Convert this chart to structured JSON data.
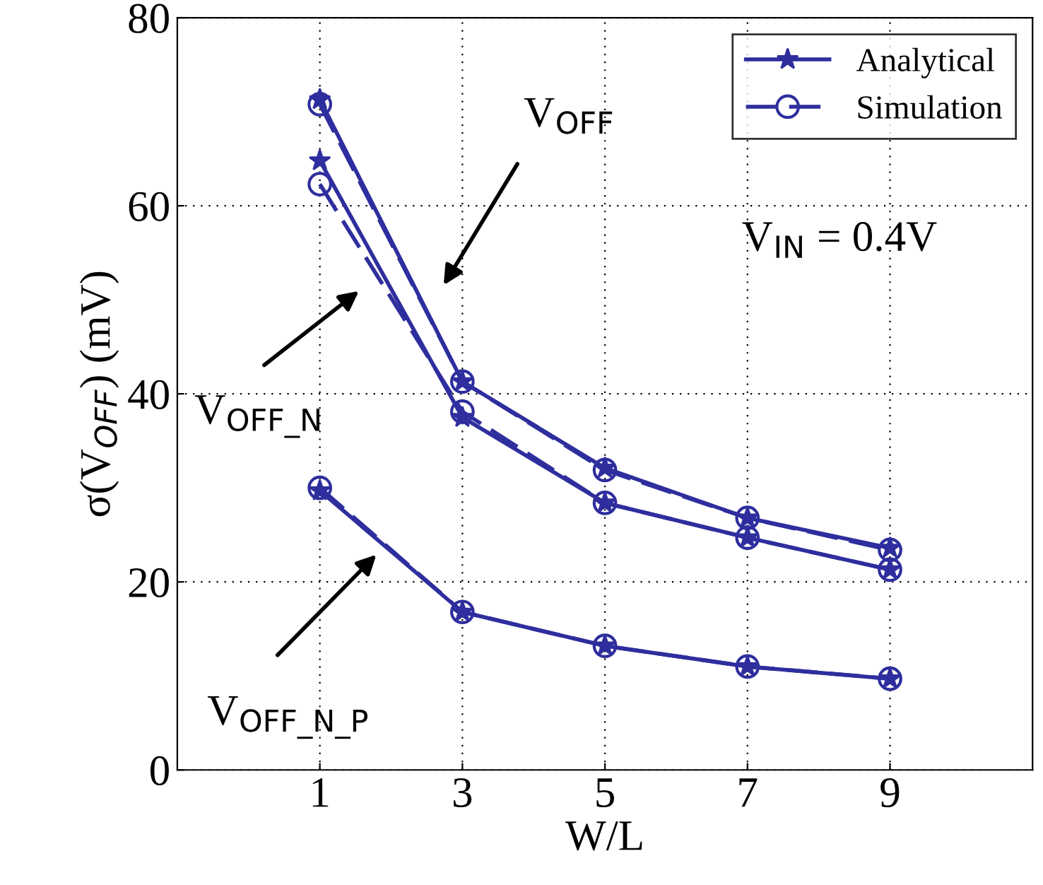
{
  "chart_data": {
    "type": "line",
    "xlabel": "W/L",
    "ylabel": "σ(V$_{OFF}$) (mV)",
    "x": [
      1,
      3,
      5,
      7,
      9
    ],
    "xlim": [
      -1,
      11
    ],
    "ylim": [
      0,
      80
    ],
    "xticks": [
      1,
      3,
      5,
      7,
      9
    ],
    "yticks": [
      0,
      20,
      40,
      60,
      80
    ],
    "grid": true,
    "legend": "top right",
    "series": [
      {
        "name": "Analytical",
        "color": "#2e2e9e",
        "marker": "star",
        "line_style": "solid",
        "values": [
          71.3,
          41.3,
          32.1,
          26.8,
          23.6
        ]
      },
      {
        "name": "Simulation",
        "color": "#2e2e9e",
        "marker": "circle",
        "line_style": "dashed",
        "values": [
          70.8,
          41.3,
          31.9,
          26.8,
          23.4
        ]
      },
      {
        "color": "#2e2e9e",
        "marker": "star",
        "line_style": "solid",
        "values": [
          64.8,
          37.5,
          28.4,
          24.7,
          21.3
        ]
      },
      {
        "color": "#2e2e9e",
        "marker": "circle",
        "line_style": "dashed",
        "values": [
          62.3,
          38.1,
          28.4,
          24.7,
          21.3
        ]
      },
      {
        "color": "#2e2e9e",
        "marker": "star",
        "line_style": "solid",
        "values": [
          29.7,
          16.8,
          13.2,
          11.0,
          9.7
        ]
      },
      {
        "color": "#2e2e9e",
        "marker": "circle",
        "line_style": "dashed",
        "values": [
          30.0,
          16.8,
          13.2,
          11.0,
          9.7
        ]
      }
    ],
    "annotations": [
      "V$_{OFF}$",
      "V$_{OFF_N}$",
      "V$_{OFF_N_P}$",
      "V$_{IN}$ = 0.4V"
    ]
  }
}
